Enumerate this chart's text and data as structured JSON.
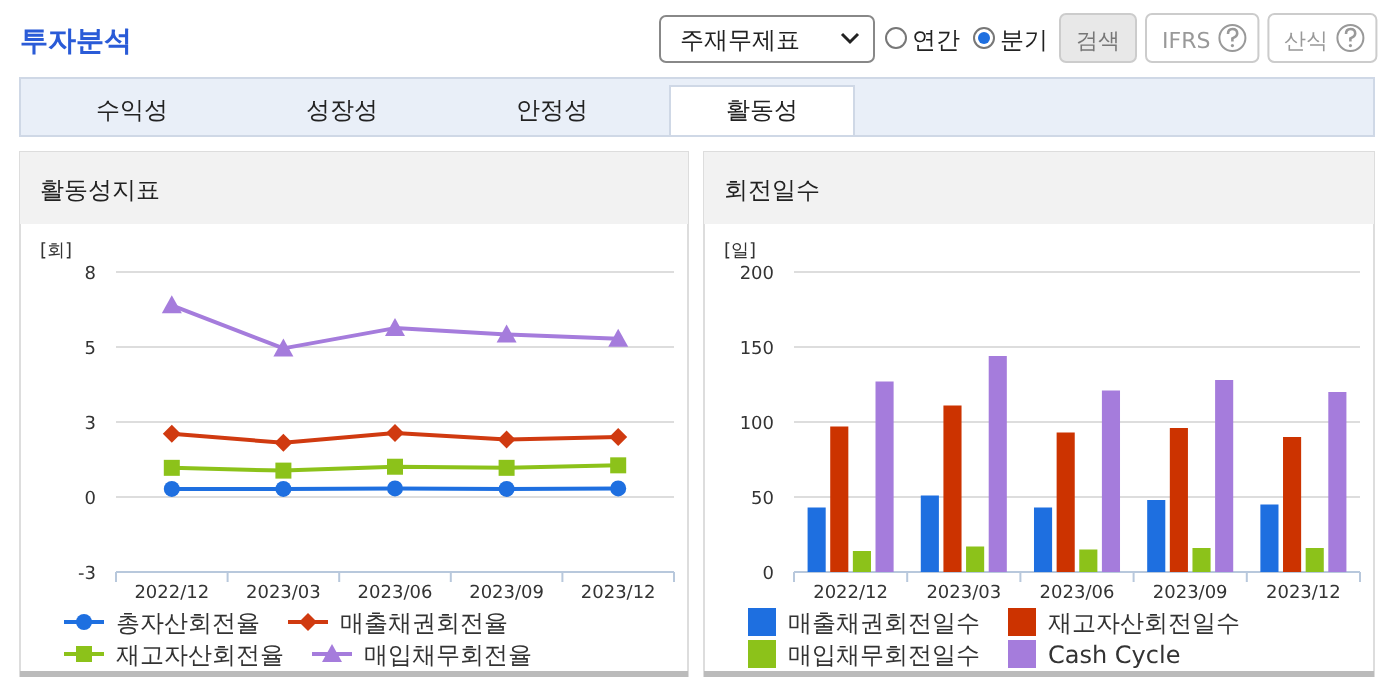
{
  "chart_data": [
    {
      "type": "other",
      "title": "투자분석",
      "annotations": [
        "주재무제표",
        "연간",
        "분기",
        "검색",
        "IFRS",
        "산식",
        "수익성",
        "성장성",
        "안정성",
        "활동성"
      ]
    },
    {
      "type": "line",
      "title": "활동성지표",
      "ylabel": "[회]",
      "categories": [
        "2022/12",
        "2023/03",
        "2023/06",
        "2023/09",
        "2023/12"
      ],
      "ylim": [
        -2.7,
        8.1
      ],
      "yticks": [
        {
          "value": -2.7,
          "label": "-3"
        },
        {
          "value": 0,
          "label": "0"
        },
        {
          "value": 2.7,
          "label": "3"
        },
        {
          "value": 5.4,
          "label": "5"
        },
        {
          "value": 8.1,
          "label": "8"
        }
      ],
      "grid": "y",
      "legend": "bottom",
      "line_style": "solid",
      "series": [
        {
          "name": "총자산회전율",
          "color": "#1e6fe0",
          "marker": "circle",
          "values": [
            0.29,
            0.29,
            0.31,
            0.29,
            0.31
          ]
        },
        {
          "name": "매출채권회전율",
          "color": "#d03a10",
          "marker": "diamond",
          "values": [
            2.28,
            1.95,
            2.3,
            2.07,
            2.16
          ]
        },
        {
          "name": "재고자산회전율",
          "color": "#8cc21a",
          "marker": "square",
          "values": [
            1.05,
            0.95,
            1.09,
            1.05,
            1.14
          ]
        },
        {
          "name": "매입채무회전율",
          "color": "#a57cdc",
          "marker": "triangle",
          "values": [
            6.9,
            5.35,
            6.08,
            5.85,
            5.7
          ]
        }
      ]
    },
    {
      "type": "bar",
      "title": "회전일수",
      "ylabel": "[일]",
      "categories": [
        "2022/12",
        "2023/03",
        "2023/06",
        "2023/09",
        "2023/12"
      ],
      "ylim": [
        0,
        200
      ],
      "yticks": [
        0,
        50,
        100,
        150,
        200
      ],
      "grid": "y",
      "legend": "bottom",
      "series": [
        {
          "name": "매출채권회전일수",
          "color": "#1e6fe0",
          "values": [
            43,
            51,
            43,
            48,
            45
          ]
        },
        {
          "name": "재고자산회전일수",
          "color": "#cc3300",
          "values": [
            97,
            111,
            93,
            96,
            90
          ]
        },
        {
          "name": "매입채무회전일수",
          "color": "#8cc21a",
          "values": [
            14,
            17,
            15,
            16,
            16
          ]
        },
        {
          "name": "Cash Cycle",
          "color": "#a57cdc",
          "values": [
            127,
            144,
            121,
            128,
            120
          ]
        }
      ]
    }
  ]
}
